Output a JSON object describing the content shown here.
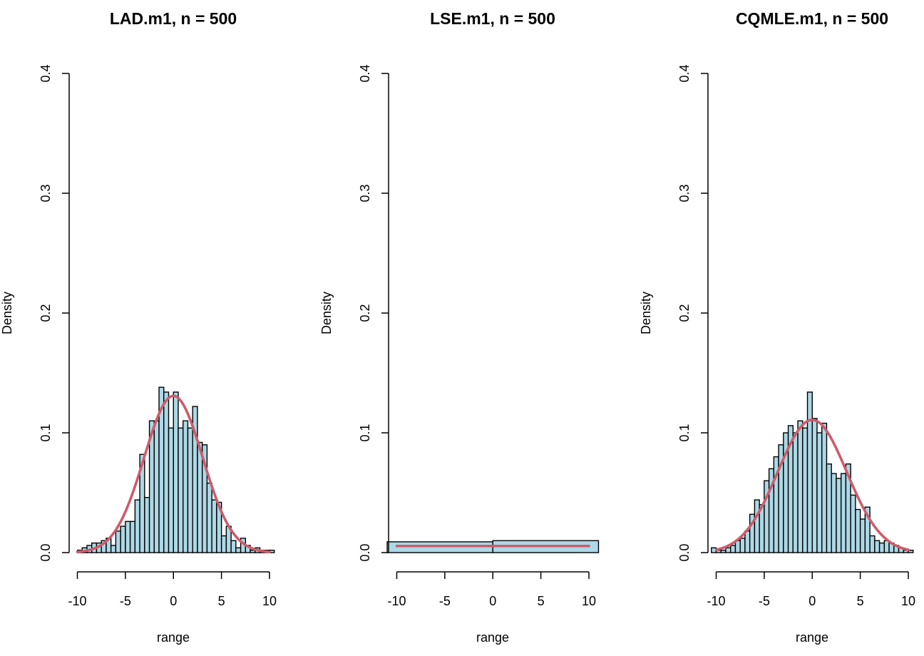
{
  "chart_data": [
    {
      "type": "bar",
      "title": "LAD.m1, n = 500",
      "xlabel": "range",
      "ylabel": "Density",
      "xlim": [
        -10,
        10
      ],
      "ylim": [
        0,
        0.4
      ],
      "xticks": [
        "-10",
        "-5",
        "0",
        "5",
        "10"
      ],
      "yticks": [
        "0.0",
        "0.1",
        "0.2",
        "0.3",
        "0.4"
      ],
      "bin_width": 0.5,
      "bins_start": -10,
      "densities": [
        0.002,
        0.004,
        0.006,
        0.008,
        0.008,
        0.01,
        0.012,
        0.006,
        0.018,
        0.022,
        0.026,
        0.026,
        0.044,
        0.082,
        0.046,
        0.11,
        0.11,
        0.138,
        0.134,
        0.104,
        0.134,
        0.104,
        0.11,
        0.104,
        0.122,
        0.092,
        0.09,
        0.058,
        0.044,
        0.042,
        0.014,
        0.022,
        0.01,
        0.004,
        0.012,
        0.006,
        0.002,
        0.004,
        0.002,
        0.002,
        0.002
      ],
      "curve": {
        "type": "normal",
        "mean": 0,
        "sd": 3.05,
        "x_range": [
          -10,
          10
        ]
      }
    },
    {
      "type": "bar",
      "title": "LSE.m1, n = 500",
      "xlabel": "range",
      "ylabel": "Density",
      "xlim": [
        -10,
        10
      ],
      "ylim": [
        0,
        0.4
      ],
      "xticks": [
        "-10",
        "-5",
        "0",
        "5",
        "10"
      ],
      "yticks": [
        "0.0",
        "0.1",
        "0.2",
        "0.3",
        "0.4"
      ],
      "bin_width": 11,
      "bins_start": -11,
      "densities": [
        0.009,
        0.01
      ],
      "curve": {
        "type": "flat",
        "value": 0.0055,
        "x_range": [
          -10,
          10
        ]
      }
    },
    {
      "type": "bar",
      "title": "CQMLE.m1, n = 500",
      "xlabel": "range",
      "ylabel": "Density",
      "xlim": [
        -10,
        10
      ],
      "ylim": [
        0,
        0.4
      ],
      "xticks": [
        "-10",
        "-5",
        "0",
        "5",
        "10"
      ],
      "yticks": [
        "0.0",
        "0.1",
        "0.2",
        "0.3",
        "0.4"
      ],
      "bin_width": 0.5,
      "bins_start": -10.5,
      "densities": [
        0.004,
        0.002,
        0.002,
        0.004,
        0.006,
        0.01,
        0.012,
        0.018,
        0.032,
        0.044,
        0.04,
        0.06,
        0.07,
        0.08,
        0.09,
        0.1,
        0.106,
        0.1,
        0.11,
        0.104,
        0.134,
        0.112,
        0.1,
        0.108,
        0.074,
        0.066,
        0.062,
        0.066,
        0.074,
        0.048,
        0.036,
        0.028,
        0.038,
        0.014,
        0.01,
        0.008,
        0.01,
        0.008,
        0.006,
        0.004,
        0.002,
        0.002
      ],
      "curve": {
        "type": "normal",
        "mean": 0,
        "sd": 3.6,
        "x_range": [
          -10,
          10
        ]
      }
    }
  ]
}
